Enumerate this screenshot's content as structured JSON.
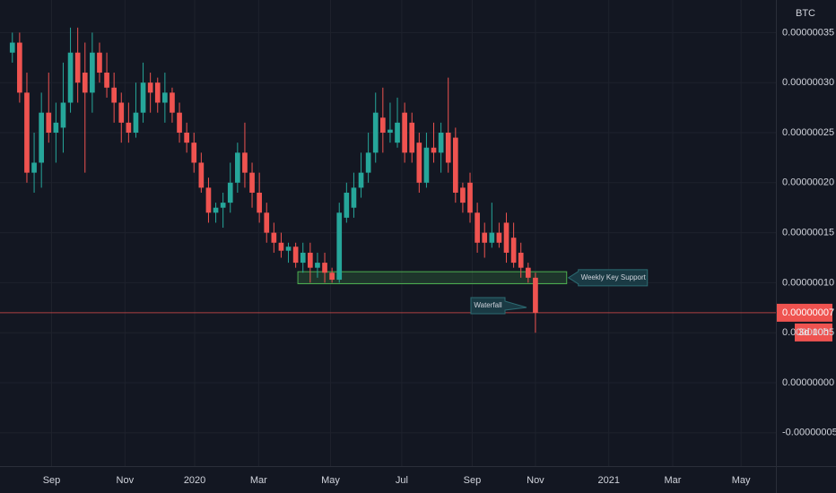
{
  "chart_data": {
    "type": "candlestick",
    "currency": "BTC",
    "up_color": "#26a69a",
    "down_color": "#ef5350",
    "grid": true,
    "x": [
      0,
      1,
      2,
      3,
      4,
      5,
      6,
      7,
      8,
      9,
      10,
      11,
      12,
      13,
      14,
      15,
      16,
      17,
      18,
      19,
      20,
      21,
      22,
      23,
      24,
      25,
      26,
      27,
      28,
      29,
      30,
      31,
      32,
      33,
      34,
      35,
      36,
      37,
      38,
      39,
      40,
      41,
      42,
      43,
      44,
      45,
      46,
      47,
      48,
      49,
      50,
      51,
      52,
      53,
      54,
      55,
      56,
      57,
      58,
      59,
      60,
      61,
      62,
      63,
      64,
      65,
      66,
      67,
      68,
      69,
      70,
      71,
      72
    ],
    "open": [
      3.3e-07,
      3.4e-07,
      2.9e-07,
      2.1e-07,
      2.2e-07,
      2.7e-07,
      2.5e-07,
      2.55e-07,
      2.8e-07,
      3.3e-07,
      3.1e-07,
      2.9e-07,
      3.3e-07,
      3.1e-07,
      2.95e-07,
      2.8e-07,
      2.6e-07,
      2.5e-07,
      2.7e-07,
      3e-07,
      3e-07,
      2.8e-07,
      2.9e-07,
      2.7e-07,
      2.5e-07,
      2.4e-07,
      2.2e-07,
      1.95e-07,
      1.7e-07,
      1.75e-07,
      1.8e-07,
      2e-07,
      2.3e-07,
      2.1e-07,
      1.9e-07,
      1.7e-07,
      1.5e-07,
      1.4e-07,
      1.32e-07,
      1.36e-07,
      1.2e-07,
      1.3e-07,
      1.15e-07,
      1.2e-07,
      1.1e-07,
      1.03e-07,
      1.65e-07,
      1.75e-07,
      1.95e-07,
      2.1e-07,
      2.3e-07,
      2.65e-07,
      2.5e-07,
      2.4e-07,
      2.7e-07,
      2.6e-07,
      2.4e-07,
      2e-07,
      2.35e-07,
      2.3e-07,
      2.5e-07,
      2.45e-07,
      1.95e-07,
      2e-07,
      1.7e-07,
      1.5e-07,
      1.4e-07,
      1.5e-07,
      1.6e-07,
      1.45e-07,
      1.3e-07,
      1.15e-07,
      1.05e-07
    ],
    "high": [
      3.5e-07,
      3.5e-07,
      3.1e-07,
      2.5e-07,
      2.9e-07,
      3.1e-07,
      2.8e-07,
      3.2e-07,
      3.55e-07,
      3.55e-07,
      3.4e-07,
      3.5e-07,
      3.4e-07,
      3.3e-07,
      3.1e-07,
      2.9e-07,
      2.8e-07,
      3e-07,
      3.2e-07,
      3.1e-07,
      3.05e-07,
      3.1e-07,
      2.95e-07,
      2.8e-07,
      2.6e-07,
      2.5e-07,
      2.3e-07,
      2.05e-07,
      1.8e-07,
      1.9e-07,
      2.2e-07,
      2.4e-07,
      2.6e-07,
      2.2e-07,
      2.1e-07,
      1.8e-07,
      1.6e-07,
      1.5e-07,
      1.4e-07,
      1.4e-07,
      1.4e-07,
      1.4e-07,
      1.3e-07,
      1.3e-07,
      1.15e-07,
      1.8e-07,
      2e-07,
      2.1e-07,
      2.3e-07,
      2.5e-07,
      2.9e-07,
      2.95e-07,
      2.8e-07,
      2.85e-07,
      2.8e-07,
      2.7e-07,
      2.5e-07,
      2.5e-07,
      2.6e-07,
      2.6e-07,
      3.05e-07,
      2.55e-07,
      2e-07,
      2.1e-07,
      1.8e-07,
      1.6e-07,
      1.8e-07,
      1.6e-07,
      1.7e-07,
      1.6e-07,
      1.4e-07,
      1.2e-07,
      1.1e-07
    ],
    "low": [
      3.2e-07,
      2.8e-07,
      2e-07,
      1.9e-07,
      1.95e-07,
      2.4e-07,
      2.2e-07,
      2.3e-07,
      2.7e-07,
      2.8e-07,
      2.1e-07,
      2.7e-07,
      3e-07,
      2.85e-07,
      2.6e-07,
      2.4e-07,
      2.4e-07,
      2.45e-07,
      2.6e-07,
      2.7e-07,
      2.7e-07,
      2.6e-07,
      2.6e-07,
      2.4e-07,
      2.3e-07,
      2.1e-07,
      1.9e-07,
      1.6e-07,
      1.6e-07,
      1.55e-07,
      1.7e-07,
      1.9e-07,
      1.95e-07,
      1.75e-07,
      1.6e-07,
      1.4e-07,
      1.3e-07,
      1.25e-07,
      1.2e-07,
      1.15e-07,
      1.1e-07,
      1e-07,
      1.05e-07,
      1e-07,
      1e-07,
      1e-07,
      1.6e-07,
      1.65e-07,
      1.85e-07,
      2e-07,
      2.2e-07,
      2.3e-07,
      2.4e-07,
      2.35e-07,
      2.2e-07,
      2.2e-07,
      1.9e-07,
      1.95e-07,
      2.2e-07,
      2.1e-07,
      2.1e-07,
      1.8e-07,
      1.7e-07,
      1.6e-07,
      1.3e-07,
      1.25e-07,
      1.35e-07,
      1.35e-07,
      1.2e-07,
      1.15e-07,
      1.05e-07,
      1e-07,
      5e-08
    ],
    "close": [
      3.4e-07,
      2.9e-07,
      2.1e-07,
      2.2e-07,
      2.7e-07,
      2.5e-07,
      2.6e-07,
      2.8e-07,
      3.3e-07,
      3e-07,
      2.9e-07,
      3.3e-07,
      3.1e-07,
      2.95e-07,
      2.8e-07,
      2.6e-07,
      2.5e-07,
      2.7e-07,
      3e-07,
      2.9e-07,
      2.8e-07,
      2.9e-07,
      2.7e-07,
      2.5e-07,
      2.4e-07,
      2.2e-07,
      1.95e-07,
      1.7e-07,
      1.75e-07,
      1.8e-07,
      2e-07,
      2.3e-07,
      2.1e-07,
      1.9e-07,
      1.7e-07,
      1.5e-07,
      1.4e-07,
      1.32e-07,
      1.36e-07,
      1.2e-07,
      1.3e-07,
      1.15e-07,
      1.2e-07,
      1.1e-07,
      1.03e-07,
      1.7e-07,
      1.9e-07,
      1.95e-07,
      2.1e-07,
      2.3e-07,
      2.7e-07,
      2.5e-07,
      2.53e-07,
      2.6e-07,
      2.3e-07,
      2.3e-07,
      2e-07,
      2.35e-07,
      2.3e-07,
      2.5e-07,
      2.2e-07,
      1.9e-07,
      1.8e-07,
      1.7e-07,
      1.4e-07,
      1.4e-07,
      1.5e-07,
      1.4e-07,
      1.3e-07,
      1.2e-07,
      1.15e-07,
      1.05e-07,
      7e-08
    ],
    "xlim": [
      -1.7,
      105.1
    ],
    "xticks": [
      {
        "value": 5.4,
        "label": "Sep"
      },
      {
        "value": 15.5,
        "label": "Nov"
      },
      {
        "value": 25.1,
        "label": "2020"
      },
      {
        "value": 33.9,
        "label": "Mar"
      },
      {
        "value": 43.8,
        "label": "May"
      },
      {
        "value": 53.6,
        "label": "Jul"
      },
      {
        "value": 63.3,
        "label": "Sep"
      },
      {
        "value": 72,
        "label": "Nov"
      },
      {
        "value": 82.1,
        "label": "2021"
      },
      {
        "value": 90.9,
        "label": "Mar"
      },
      {
        "value": 100.3,
        "label": "May"
      }
    ],
    "ylim": [
      -8.33e-08,
      3.826e-07
    ],
    "yticks": [
      {
        "value": 3.5e-07,
        "label": "0.00000035"
      },
      {
        "value": 3e-07,
        "label": "0.00000030"
      },
      {
        "value": 2.5e-07,
        "label": "0.00000025"
      },
      {
        "value": 2e-07,
        "label": "0.00000020"
      },
      {
        "value": 1.5e-07,
        "label": "0.00000015"
      },
      {
        "value": 1e-07,
        "label": "0.00000010"
      },
      {
        "value": 5e-08,
        "label": "0.00000005"
      },
      {
        "value": 0,
        "label": "0.00000000"
      },
      {
        "value": -5e-08,
        "label": "-0.00000005"
      }
    ],
    "last_price": {
      "value": 7e-08,
      "label": "0.00000007"
    },
    "countdown": "3d 10h",
    "support_zone": {
      "label": "Weekly Key Support",
      "x": [
        39.3,
        76.3
      ],
      "y": [
        9.9e-08,
        1.11e-07
      ]
    },
    "annotation": "Waterfall"
  }
}
